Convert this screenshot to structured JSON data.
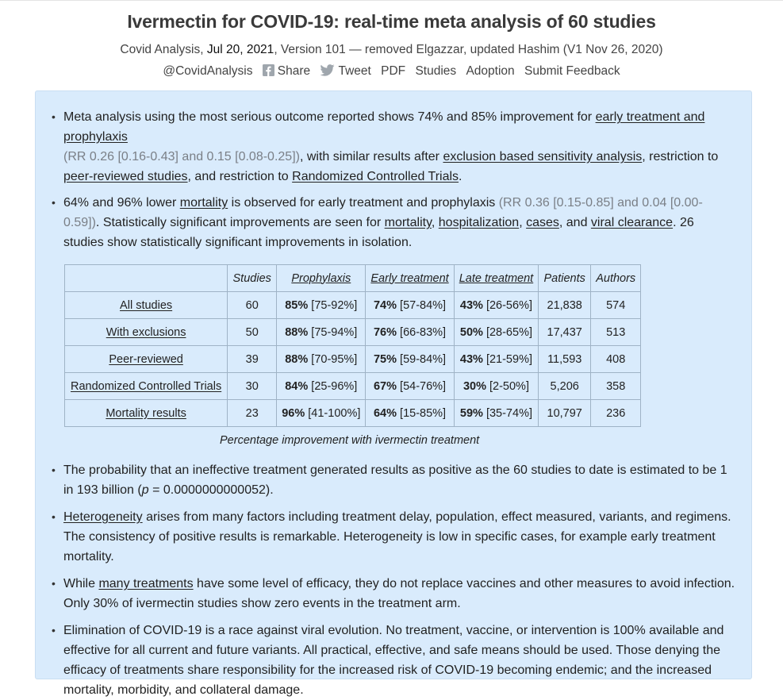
{
  "title": "Ivermectin for COVID-19: real-time meta analysis of 60 studies",
  "meta": {
    "source": "Covid Analysis,",
    "date": "Jul 20, 2021",
    "version": ", Version 101 — removed Elgazzar, updated Hashim (V1 Nov 26, 2020)"
  },
  "links": {
    "handle": "@CovidAnalysis",
    "share": "Share",
    "tweet": "Tweet",
    "pdf": "PDF",
    "studies": "Studies",
    "adoption": "Adoption",
    "feedback": "Submit Feedback"
  },
  "bullets": {
    "b1": {
      "t1": "Meta analysis using the most serious outcome reported shows 74% and 85% improvement for ",
      "l1": "early treatment and prophylaxis",
      "g1": "(RR 0.26 [0.16-0.43] and 0.15 [0.08-0.25])",
      "t2": ", with similar results after ",
      "l2": "exclusion based sensitivity analysis",
      "t3": ", restriction to ",
      "l3": "peer-reviewed studies",
      "t4": ", and restriction to ",
      "l4": "Randomized Controlled Trials",
      "t5": "."
    },
    "b2": {
      "t1": "64% and 96% lower ",
      "l1": "mortality",
      "t2": " is observed for early treatment and prophylaxis ",
      "g1": "(RR 0.36 [0.15-0.85] and 0.04 [0.00-0.59])",
      "t3": ". Statistically significant improvements are seen for ",
      "l2": "mortality",
      "t4": ", ",
      "l3": "hospitalization",
      "t5": ", ",
      "l4": "cases",
      "t6": ", and ",
      "l5": "viral clearance",
      "t7": ". 26 studies show statistically significant improvements in isolation."
    },
    "b3": {
      "t1": "The probability that an ineffective treatment generated results as positive as the 60 studies to date is estimated to be 1 in 193 billion (",
      "p": "p",
      "t2": " = 0.0000000000052)."
    },
    "b4": {
      "l1": "Heterogeneity",
      "t1": " arises from many factors including treatment delay, population, effect measured, variants, and regimens. The consistency of positive results is remarkable. Heterogeneity is low in specific cases, for example early treatment mortality."
    },
    "b5": {
      "t1": "While ",
      "l1": "many treatments",
      "t2": " have some level of efficacy, they do not replace vaccines and other measures to avoid infection. Only 30% of ivermectin studies show zero events in the treatment arm."
    },
    "b6": {
      "t1": "Elimination of COVID-19 is a race against viral evolution. No treatment, vaccine, or intervention is 100% available and effective for all current and future variants. All practical, effective, and safe means should be used. Those denying the efficacy of treatments share responsibility for the increased risk of COVID-19 becoming endemic; and the increased mortality, morbidity, and collateral damage."
    }
  },
  "table": {
    "headers": [
      "",
      "Studies",
      "Prophylaxis",
      "Early treatment",
      "Late treatment",
      "Patients",
      "Authors"
    ],
    "rows": [
      {
        "label": "All studies",
        "studies": "60",
        "pro_pct": "85%",
        "pro_ci": " [75-92%]",
        "early_pct": "74%",
        "early_ci": " [57-84%]",
        "late_pct": "43%",
        "late_ci": " [26-56%]",
        "patients": "21,838",
        "authors": "574"
      },
      {
        "label": "With exclusions",
        "studies": "50",
        "pro_pct": "88%",
        "pro_ci": " [75-94%]",
        "early_pct": "76%",
        "early_ci": " [66-83%]",
        "late_pct": "50%",
        "late_ci": " [28-65%]",
        "patients": "17,437",
        "authors": "513"
      },
      {
        "label": "Peer-reviewed",
        "studies": "39",
        "pro_pct": "88%",
        "pro_ci": " [70-95%]",
        "early_pct": "75%",
        "early_ci": " [59-84%]",
        "late_pct": "43%",
        "late_ci": " [21-59%]",
        "patients": "11,593",
        "authors": "408"
      },
      {
        "label": "Randomized Controlled Trials",
        "studies": "30",
        "pro_pct": "84%",
        "pro_ci": " [25-96%]",
        "early_pct": "67%",
        "early_ci": " [54-76%]",
        "late_pct": "30%",
        "late_ci": " [2-50%]",
        "patients": "5,206",
        "authors": "358"
      },
      {
        "label": "Mortality results",
        "studies": "23",
        "pro_pct": "96%",
        "pro_ci": " [41-100%]",
        "early_pct": "64%",
        "early_ci": " [15-85%]",
        "late_pct": "59%",
        "late_ci": " [35-74%]",
        "patients": "10,797",
        "authors": "236"
      }
    ],
    "caption": "Percentage improvement with ivermectin treatment"
  },
  "colors": {
    "panel_bg": "#d9ebfc",
    "twitter_icon": "#9fa6ad",
    "facebook_icon": "#9fa6ad"
  }
}
